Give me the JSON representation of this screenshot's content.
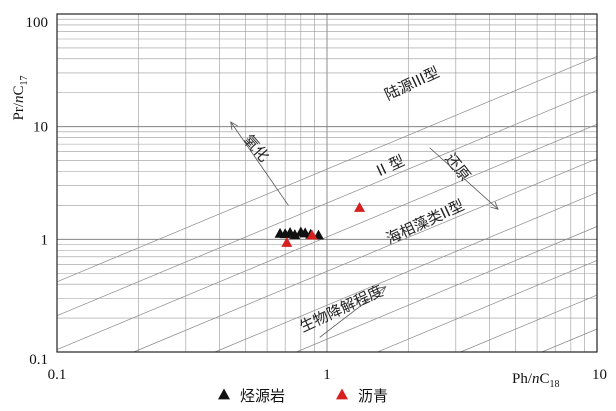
{
  "chart_data": {
    "type": "scatter",
    "xscale": "log",
    "yscale": "log",
    "xlim": [
      0.1,
      10
    ],
    "ylim": [
      0.1,
      100
    ],
    "x_ticks": [
      0.1,
      1,
      10
    ],
    "x_tick_labels": [
      "0.1",
      "1",
      "10"
    ],
    "y_ticks": [
      0.1,
      1,
      10,
      100
    ],
    "y_tick_labels": [
      "0.1",
      "1",
      "10",
      "100"
    ],
    "xlabel": {
      "main": "Ph/",
      "italic": "n",
      "base": "C",
      "sub": "18"
    },
    "ylabel": {
      "main": "Pr/",
      "italic": "n",
      "base": "C",
      "sub": "17"
    },
    "grid": true,
    "reference_line_slopes": [
      0.016,
      0.032,
      0.065,
      0.13,
      0.26,
      0.52,
      1.05,
      2.1,
      4.2
    ],
    "annotations": [
      {
        "text": "陆源III型",
        "x": 2.1,
        "y": 22,
        "rotation": -25
      },
      {
        "text": "氧化",
        "x": 0.53,
        "y": 6.0,
        "rotation": 48
      },
      {
        "text": "II 型",
        "x": 1.75,
        "y": 4.1,
        "rotation": -25
      },
      {
        "text": "还原",
        "x": 2.95,
        "y": 4.1,
        "rotation": 52
      },
      {
        "text": "海相藻类II型",
        "x": 2.35,
        "y": 1.3,
        "rotation": -25
      },
      {
        "text": "生物降解程度",
        "x": 1.15,
        "y": 0.22,
        "rotation": -25
      }
    ],
    "arrows": [
      {
        "from": [
          0.72,
          2.0
        ],
        "to": [
          0.44,
          11.0
        ]
      },
      {
        "from": [
          2.4,
          6.5
        ],
        "to": [
          4.3,
          1.85
        ]
      },
      {
        "from": [
          0.94,
          0.135
        ],
        "to": [
          1.65,
          0.38
        ]
      }
    ],
    "series": [
      {
        "name": "烃源岩",
        "marker": "triangle",
        "color": "#111111",
        "points": [
          [
            0.67,
            1.12
          ],
          [
            0.7,
            1.11
          ],
          [
            0.73,
            1.14
          ],
          [
            0.76,
            1.09
          ],
          [
            0.8,
            1.15
          ],
          [
            0.83,
            1.13
          ],
          [
            0.87,
            1.1
          ],
          [
            0.93,
            1.08
          ]
        ]
      },
      {
        "name": "沥青",
        "marker": "triangle",
        "color": "#d62020",
        "points": [
          [
            0.71,
            0.93
          ],
          [
            0.88,
            1.08
          ],
          [
            1.32,
            1.9
          ]
        ]
      }
    ],
    "legend_position": "bottom-center"
  }
}
